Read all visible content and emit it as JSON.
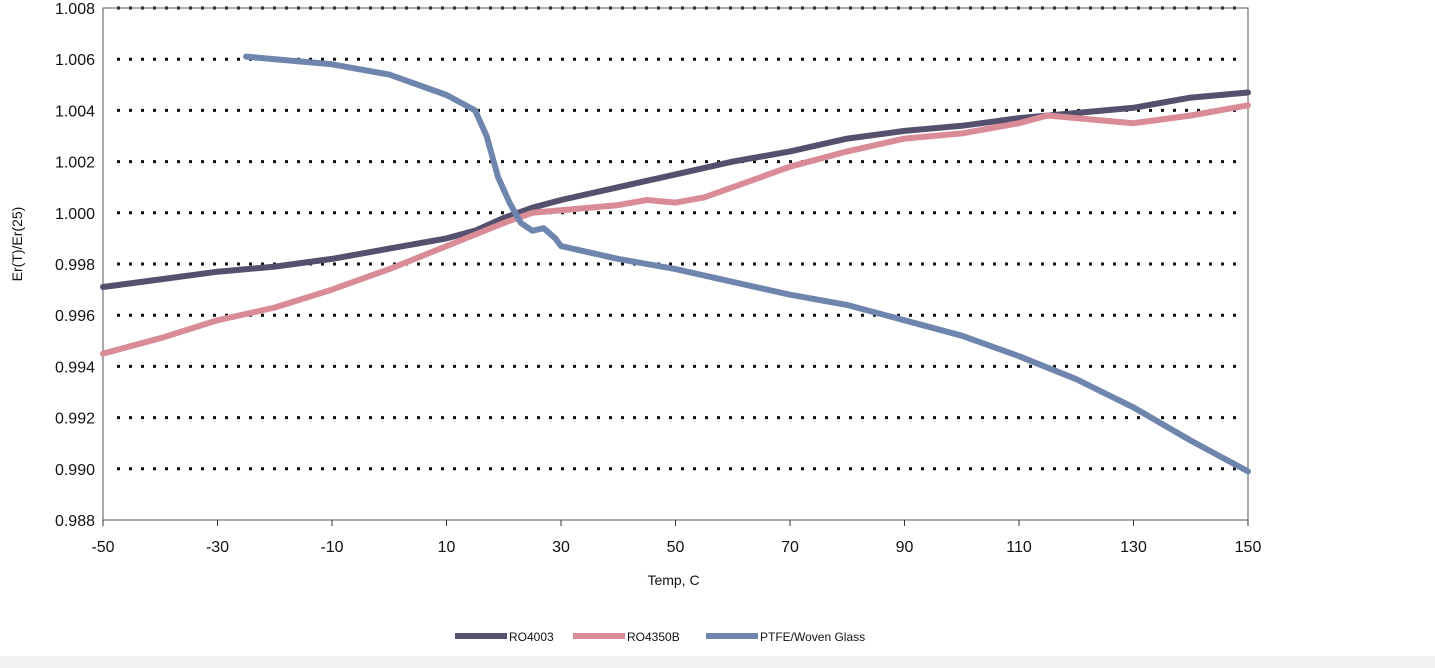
{
  "chart_data": {
    "type": "line",
    "title": "",
    "xlabel": "Temp, C",
    "ylabel": "Er(T)/Er(25)",
    "xlim": [
      -50,
      150
    ],
    "ylim": [
      0.988,
      1.008
    ],
    "xticks": [
      -50,
      -30,
      -10,
      10,
      30,
      50,
      70,
      90,
      110,
      130,
      150
    ],
    "xtick_labels": [
      "-50",
      "-30",
      "-10",
      "10",
      "30",
      "50",
      "70",
      "90",
      "110",
      "130",
      "150"
    ],
    "yticks": [
      0.988,
      0.99,
      0.992,
      0.994,
      0.996,
      0.998,
      1.0,
      1.002,
      1.004,
      1.006,
      1.008
    ],
    "ytick_labels": [
      "0.988",
      "0.990",
      "0.992",
      "0.994",
      "0.996",
      "0.998",
      "1.000",
      "1.002",
      "1.004",
      "1.006",
      "1.008"
    ],
    "grid": "horizontal dotted",
    "legend_position": "bottom",
    "series": [
      {
        "name": "RO4003",
        "color": "#55506e",
        "x": [
          -50,
          -40,
          -30,
          -20,
          -10,
          0,
          10,
          15,
          20,
          25,
          30,
          40,
          50,
          60,
          70,
          80,
          90,
          100,
          110,
          120,
          130,
          140,
          150
        ],
        "y": [
          0.9971,
          0.9974,
          0.9977,
          0.9979,
          0.9982,
          0.9986,
          0.999,
          0.9993,
          0.9998,
          1.0002,
          1.0005,
          1.001,
          1.0015,
          1.002,
          1.0024,
          1.0029,
          1.0032,
          1.0034,
          1.0037,
          1.0039,
          1.0041,
          1.0045,
          1.0047
        ]
      },
      {
        "name": "RO4350B",
        "color": "#d98c96",
        "x": [
          -50,
          -40,
          -30,
          -20,
          -10,
          0,
          10,
          20,
          25,
          30,
          40,
          45,
          50,
          55,
          60,
          70,
          80,
          90,
          100,
          110,
          115,
          120,
          130,
          140,
          150
        ],
        "y": [
          0.9945,
          0.9951,
          0.9958,
          0.9963,
          0.997,
          0.9978,
          0.9987,
          0.9996,
          1.0,
          1.0001,
          1.0003,
          1.0005,
          1.0004,
          1.0006,
          1.001,
          1.0018,
          1.0024,
          1.0029,
          1.0031,
          1.0035,
          1.0038,
          1.0037,
          1.0035,
          1.0038,
          1.0042
        ]
      },
      {
        "name": "PTFE/Woven Glass",
        "color": "#6e86ad",
        "x": [
          -25,
          -20,
          -10,
          0,
          10,
          15,
          17,
          19,
          21,
          23,
          25,
          27,
          29,
          30,
          40,
          50,
          60,
          70,
          80,
          90,
          100,
          110,
          120,
          130,
          140,
          150
        ],
        "y": [
          1.0061,
          1.006,
          1.0058,
          1.0054,
          1.0046,
          1.004,
          1.003,
          1.0014,
          1.0004,
          0.9996,
          0.9993,
          0.9994,
          0.999,
          0.9987,
          0.9982,
          0.9978,
          0.9973,
          0.9968,
          0.9964,
          0.9958,
          0.9952,
          0.9944,
          0.9935,
          0.9924,
          0.9911,
          0.9899
        ]
      }
    ]
  }
}
